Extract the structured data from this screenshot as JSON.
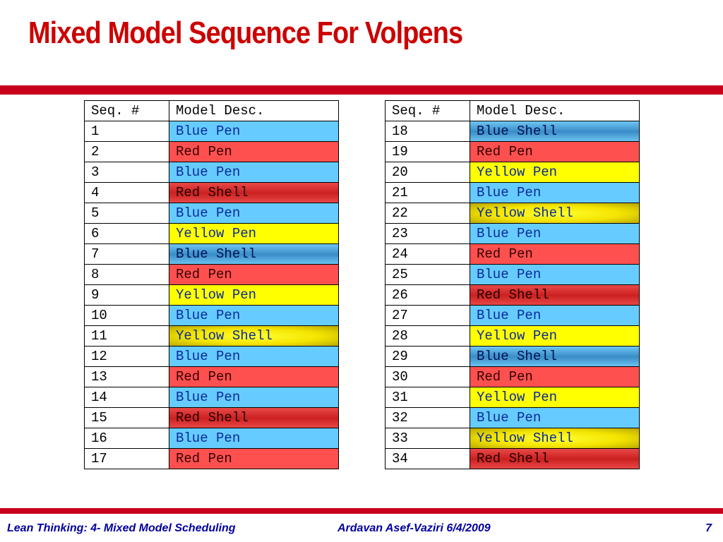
{
  "slide": {
    "title": "Mixed Model Sequence For Volpens"
  },
  "colors": {
    "title": "#cc0000",
    "bars": "#c8001c",
    "footer_text": "#0000a0",
    "blue_pen": "#66ccff",
    "red_pen": "#ff5050",
    "yellow_pen": "#ffff00",
    "red_shell": "#cc2020",
    "blue_shell": "#3a8cc8",
    "yellow_shell": "#f4e400"
  },
  "table_headers": {
    "seq": "Seq. #",
    "desc": "Model Desc."
  },
  "table_left": [
    {
      "seq": "1",
      "model": "Blue Pen"
    },
    {
      "seq": "2",
      "model": "Red Pen"
    },
    {
      "seq": "3",
      "model": "Blue Pen"
    },
    {
      "seq": "4",
      "model": "Red Shell"
    },
    {
      "seq": "5",
      "model": "Blue Pen"
    },
    {
      "seq": "6",
      "model": "Yellow Pen"
    },
    {
      "seq": "7",
      "model": "Blue Shell"
    },
    {
      "seq": "8",
      "model": "Red Pen"
    },
    {
      "seq": "9",
      "model": "Yellow Pen"
    },
    {
      "seq": "10",
      "model": "Blue Pen"
    },
    {
      "seq": "11",
      "model": "Yellow Shell"
    },
    {
      "seq": "12",
      "model": "Blue Pen"
    },
    {
      "seq": "13",
      "model": "Red Pen"
    },
    {
      "seq": "14",
      "model": "Blue Pen"
    },
    {
      "seq": "15",
      "model": "Red Shell"
    },
    {
      "seq": "16",
      "model": "Blue Pen"
    },
    {
      "seq": "17",
      "model": "Red Pen"
    }
  ],
  "table_right": [
    {
      "seq": "18",
      "model": "Blue Shell"
    },
    {
      "seq": "19",
      "model": "Red Pen"
    },
    {
      "seq": "20",
      "model": "Yellow Pen"
    },
    {
      "seq": "21",
      "model": "Blue Pen"
    },
    {
      "seq": "22",
      "model": "Yellow Shell"
    },
    {
      "seq": "23",
      "model": "Blue Pen"
    },
    {
      "seq": "24",
      "model": "Red Pen"
    },
    {
      "seq": "25",
      "model": "Blue Pen"
    },
    {
      "seq": "26",
      "model": "Red Shell"
    },
    {
      "seq": "27",
      "model": "Blue Pen"
    },
    {
      "seq": "28",
      "model": "Yellow Pen"
    },
    {
      "seq": "29",
      "model": "Blue Shell"
    },
    {
      "seq": "30",
      "model": "Red Pen"
    },
    {
      "seq": "31",
      "model": "Yellow Pen"
    },
    {
      "seq": "32",
      "model": "Blue Pen"
    },
    {
      "seq": "33",
      "model": "Yellow Shell"
    },
    {
      "seq": "34",
      "model": "Red Shell"
    }
  ],
  "footer": {
    "course": "Lean Thinking:  4- Mixed Model Scheduling",
    "author_date": "Ardavan Asef-Vaziri    6/4/2009",
    "page": "7"
  }
}
